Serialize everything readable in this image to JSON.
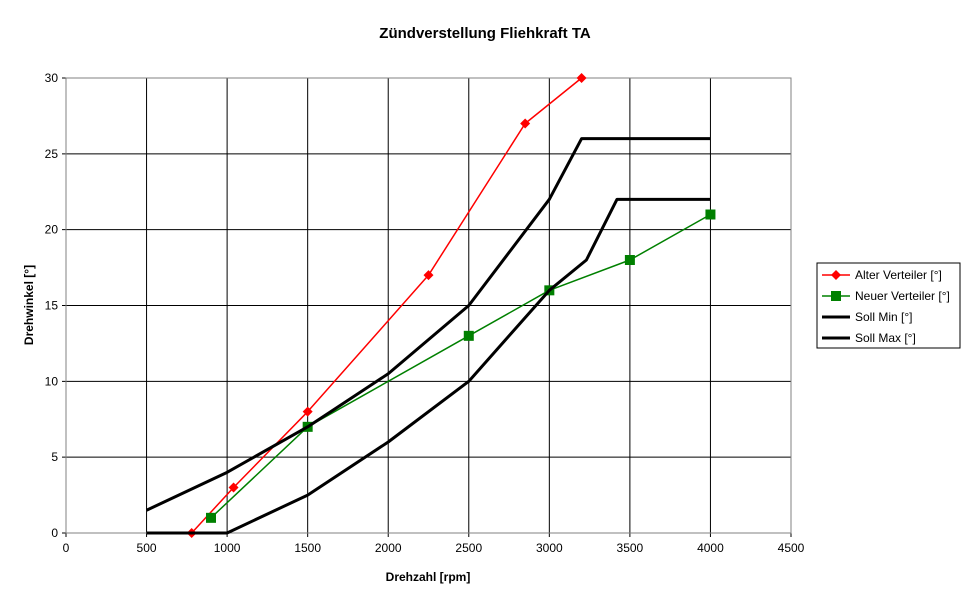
{
  "chart_data": {
    "type": "line",
    "title": "Zündverstellung Fliehkraft TA",
    "xlabel": "Drehzahl [rpm]",
    "ylabel": "Drehwinkel [°]",
    "xlim": [
      0,
      4500
    ],
    "ylim": [
      0,
      30
    ],
    "xticks": [
      0,
      500,
      1000,
      1500,
      2000,
      2500,
      3000,
      3500,
      4000,
      4500
    ],
    "yticks": [
      0,
      5,
      10,
      15,
      20,
      25,
      30
    ],
    "grid": true,
    "legend_position": "right",
    "series": [
      {
        "name": "Alter Verteiler [°]",
        "color": "#ff0000",
        "marker": "diamond",
        "x": [
          780,
          1040,
          1500,
          2250,
          2850,
          3200
        ],
        "y": [
          0,
          3,
          8,
          17,
          27,
          30
        ]
      },
      {
        "name": "Neuer Verteiler [°]",
        "color": "#008000",
        "marker": "square",
        "x": [
          900,
          1500,
          2500,
          3000,
          3500,
          4000
        ],
        "y": [
          1,
          7,
          13,
          16,
          18,
          21
        ]
      },
      {
        "name": "Soll Min [°]",
        "color": "#000000",
        "marker": "none",
        "x": [
          500,
          1000,
          1500,
          2000,
          2500,
          3000,
          3230,
          3420,
          4000
        ],
        "y": [
          0,
          0,
          2.5,
          6,
          10,
          16,
          18,
          22,
          22
        ]
      },
      {
        "name": "Soll Max [°]",
        "color": "#000000",
        "marker": "none",
        "x": [
          500,
          1000,
          1500,
          2000,
          2500,
          3000,
          3200,
          4000
        ],
        "y": [
          1.5,
          4,
          7,
          10.5,
          15,
          22,
          26,
          26
        ]
      }
    ]
  }
}
